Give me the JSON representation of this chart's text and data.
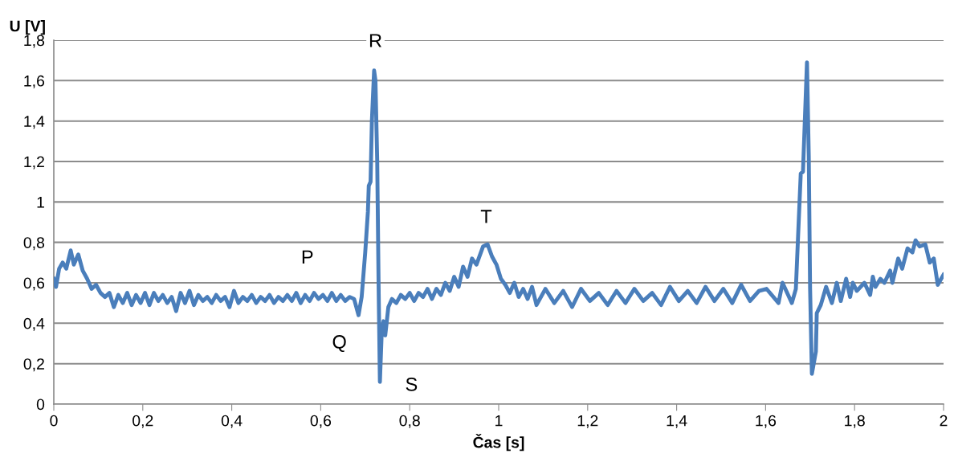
{
  "chart_data": {
    "type": "line",
    "xlabel": "Čas [s]",
    "ylabel": "U [V]",
    "x": [
      0.0,
      0.005,
      0.012,
      0.02,
      0.028,
      0.038,
      0.045,
      0.055,
      0.065,
      0.075,
      0.085,
      0.095,
      0.105,
      0.115,
      0.125,
      0.135,
      0.145,
      0.155,
      0.165,
      0.175,
      0.185,
      0.195,
      0.205,
      0.215,
      0.225,
      0.235,
      0.245,
      0.255,
      0.265,
      0.275,
      0.285,
      0.295,
      0.305,
      0.315,
      0.325,
      0.335,
      0.345,
      0.355,
      0.365,
      0.375,
      0.385,
      0.395,
      0.405,
      0.415,
      0.425,
      0.435,
      0.445,
      0.455,
      0.465,
      0.475,
      0.485,
      0.495,
      0.505,
      0.515,
      0.525,
      0.535,
      0.545,
      0.555,
      0.565,
      0.575,
      0.585,
      0.595,
      0.605,
      0.615,
      0.625,
      0.635,
      0.645,
      0.655,
      0.665,
      0.675,
      0.685,
      0.692,
      0.7,
      0.706,
      0.708,
      0.712,
      0.715,
      0.72,
      0.723,
      0.727,
      0.73,
      0.733,
      0.737,
      0.741,
      0.745,
      0.752,
      0.76,
      0.77,
      0.78,
      0.79,
      0.8,
      0.81,
      0.82,
      0.83,
      0.84,
      0.85,
      0.86,
      0.87,
      0.88,
      0.89,
      0.9,
      0.91,
      0.92,
      0.93,
      0.94,
      0.95,
      0.965,
      0.975,
      0.985,
      0.995,
      1.005,
      1.015,
      1.025,
      1.035,
      1.045,
      1.055,
      1.065,
      1.075,
      1.085,
      1.105,
      1.125,
      1.145,
      1.165,
      1.185,
      1.205,
      1.225,
      1.245,
      1.265,
      1.285,
      1.305,
      1.325,
      1.345,
      1.365,
      1.385,
      1.405,
      1.425,
      1.445,
      1.465,
      1.485,
      1.505,
      1.525,
      1.545,
      1.565,
      1.585,
      1.602,
      1.629,
      1.638,
      1.659,
      1.668,
      1.673,
      1.679,
      1.684,
      1.688,
      1.693,
      1.697,
      1.7,
      1.704,
      1.713,
      1.715,
      1.724,
      1.736,
      1.749,
      1.76,
      1.769,
      1.781,
      1.79,
      1.796,
      1.805,
      1.822,
      1.835,
      1.841,
      1.847,
      1.858,
      1.867,
      1.88,
      1.885,
      1.898,
      1.907,
      1.919,
      1.93,
      1.937,
      1.946,
      1.959,
      1.969,
      1.978,
      1.987,
      2.0
    ],
    "series": [
      {
        "color": "#4a7ebb",
        "values": [
          0.62,
          0.58,
          0.67,
          0.7,
          0.67,
          0.76,
          0.69,
          0.74,
          0.66,
          0.62,
          0.57,
          0.59,
          0.55,
          0.53,
          0.55,
          0.48,
          0.54,
          0.5,
          0.55,
          0.49,
          0.54,
          0.5,
          0.55,
          0.49,
          0.55,
          0.51,
          0.54,
          0.5,
          0.53,
          0.46,
          0.55,
          0.5,
          0.56,
          0.49,
          0.54,
          0.51,
          0.53,
          0.5,
          0.54,
          0.51,
          0.53,
          0.48,
          0.56,
          0.5,
          0.53,
          0.51,
          0.54,
          0.5,
          0.53,
          0.51,
          0.54,
          0.5,
          0.53,
          0.51,
          0.54,
          0.51,
          0.55,
          0.5,
          0.54,
          0.51,
          0.55,
          0.52,
          0.54,
          0.51,
          0.55,
          0.51,
          0.54,
          0.51,
          0.53,
          0.52,
          0.44,
          0.53,
          0.75,
          0.95,
          1.08,
          1.1,
          1.4,
          1.65,
          1.6,
          1.2,
          0.6,
          0.11,
          0.35,
          0.41,
          0.34,
          0.48,
          0.52,
          0.5,
          0.54,
          0.52,
          0.55,
          0.51,
          0.55,
          0.53,
          0.57,
          0.52,
          0.57,
          0.54,
          0.6,
          0.56,
          0.63,
          0.58,
          0.68,
          0.63,
          0.72,
          0.69,
          0.78,
          0.79,
          0.73,
          0.69,
          0.62,
          0.59,
          0.55,
          0.6,
          0.53,
          0.57,
          0.52,
          0.58,
          0.49,
          0.57,
          0.5,
          0.56,
          0.48,
          0.57,
          0.51,
          0.55,
          0.49,
          0.56,
          0.5,
          0.57,
          0.51,
          0.55,
          0.49,
          0.58,
          0.51,
          0.56,
          0.5,
          0.58,
          0.51,
          0.57,
          0.5,
          0.59,
          0.51,
          0.56,
          0.57,
          0.5,
          0.6,
          0.5,
          0.57,
          0.83,
          1.14,
          1.15,
          1.39,
          1.69,
          1.23,
          0.57,
          0.15,
          0.26,
          0.45,
          0.49,
          0.58,
          0.5,
          0.6,
          0.51,
          0.62,
          0.53,
          0.6,
          0.56,
          0.6,
          0.54,
          0.63,
          0.58,
          0.62,
          0.6,
          0.66,
          0.6,
          0.72,
          0.67,
          0.77,
          0.75,
          0.81,
          0.78,
          0.79,
          0.7,
          0.72,
          0.59,
          0.64
        ]
      }
    ],
    "xlim": [
      0,
      2
    ],
    "ylim": [
      0,
      1.8
    ],
    "xticks": [
      0,
      {
        "value": 0.2,
        "label": "0,2"
      },
      {
        "value": 0.4,
        "label": "0,4"
      },
      {
        "value": 0.6,
        "label": "0,6"
      },
      {
        "value": 0.8,
        "label": "0,8"
      },
      1,
      {
        "value": 1.2,
        "label": "1,2"
      },
      {
        "value": 1.4,
        "label": "1,4"
      },
      {
        "value": 1.6,
        "label": "1,6"
      },
      {
        "value": 1.8,
        "label": "1,8"
      },
      2
    ],
    "yticks": [
      0,
      {
        "value": 0.2,
        "label": "0,2"
      },
      {
        "value": 0.4,
        "label": "0,4"
      },
      {
        "value": 0.6,
        "label": "0,6"
      },
      {
        "value": 0.8,
        "label": "0,8"
      },
      1,
      {
        "value": 1.2,
        "label": "1,2"
      },
      {
        "value": 1.4,
        "label": "1,4"
      },
      {
        "value": 1.6,
        "label": "1,6"
      },
      {
        "value": 1.8,
        "label": "1,8"
      }
    ],
    "grid": "y",
    "marker": "none",
    "line_style": "solid",
    "annotations": [
      {
        "text": "P",
        "x": 0.57,
        "y": 0.72
      },
      {
        "text": "Q",
        "x": 0.642,
        "y": 0.3
      },
      {
        "text": "R",
        "x": 0.723,
        "y": 1.79
      },
      {
        "text": "S",
        "x": 0.804,
        "y": 0.09
      },
      {
        "text": "T",
        "x": 0.972,
        "y": 0.92
      }
    ]
  }
}
